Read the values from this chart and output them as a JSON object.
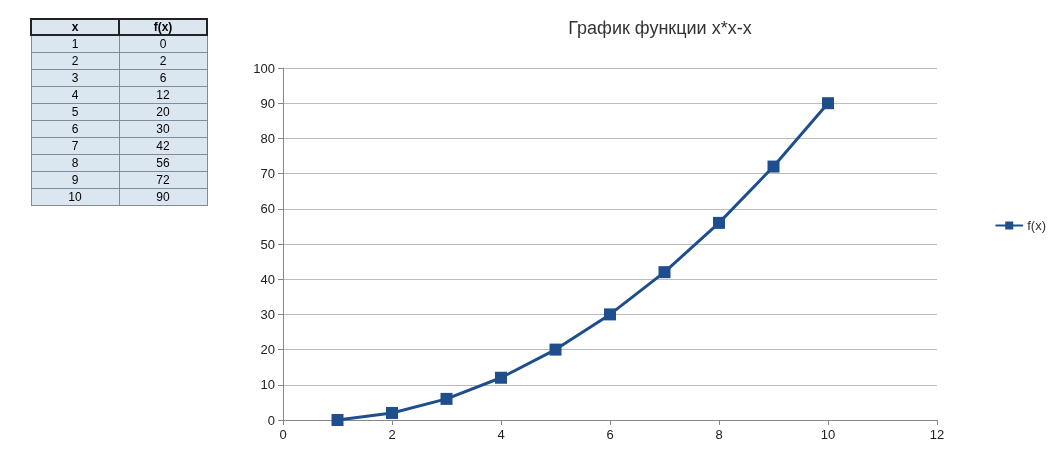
{
  "chart_data": {
    "type": "line",
    "title": "График функции x*x-x",
    "x": [
      1,
      2,
      3,
      4,
      5,
      6,
      7,
      8,
      9,
      10
    ],
    "series": [
      {
        "name": "f(x)",
        "color": "#1f4e8c",
        "values": [
          0,
          2,
          6,
          12,
          20,
          30,
          42,
          56,
          72,
          90
        ]
      }
    ],
    "xlim": [
      0,
      12
    ],
    "xticks": [
      0,
      2,
      4,
      6,
      8,
      10,
      12
    ],
    "ylim": [
      0,
      100
    ],
    "yticks": [
      0,
      10,
      20,
      30,
      40,
      50,
      60,
      70,
      80,
      90,
      100
    ],
    "grid": "y",
    "legend": "right",
    "marker": "square",
    "annotations": [
      "x",
      "f(x)",
      "1",
      "0",
      "2",
      "2",
      "3",
      "6",
      "4",
      "12",
      "5",
      "20",
      "6",
      "30",
      "7",
      "42",
      "8",
      "56",
      "9",
      "72",
      "10",
      "90"
    ]
  }
}
